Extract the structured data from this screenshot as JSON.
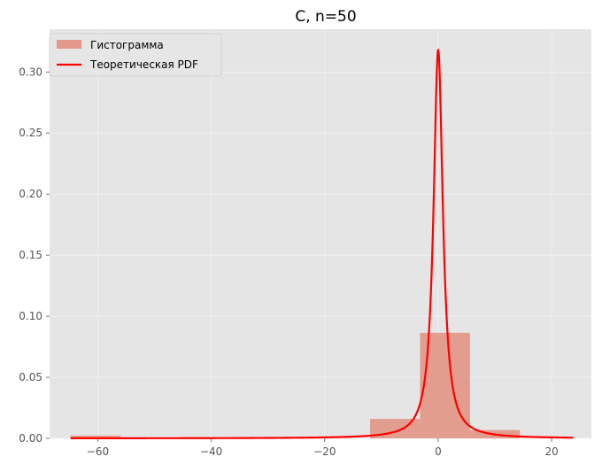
{
  "chart_data": {
    "type": "bar",
    "title": "C, n=50",
    "xlabel": "",
    "ylabel": "",
    "xlim": [
      -68.5,
      27.0
    ],
    "ylim": [
      0,
      0.335
    ],
    "grid": true,
    "legend_position": "top-left",
    "x_ticks": [
      -60,
      -40,
      -20,
      0,
      20
    ],
    "y_ticks": [
      0.0,
      0.05,
      0.1,
      0.15,
      0.2,
      0.25,
      0.3
    ],
    "histogram": {
      "name": "Гистограмма",
      "color": "#E2998A",
      "bins": [
        {
          "x0": -64.8,
          "x1": -56.0,
          "density": 0.0023
        },
        {
          "x0": -56.0,
          "x1": -47.2,
          "density": 0.0
        },
        {
          "x0": -47.2,
          "x1": -38.4,
          "density": 0.0
        },
        {
          "x0": -38.4,
          "x1": -29.6,
          "density": 0.0
        },
        {
          "x0": -29.6,
          "x1": -20.8,
          "density": 0.0
        },
        {
          "x0": -20.8,
          "x1": -12.0,
          "density": 0.0
        },
        {
          "x0": -12.0,
          "x1": -3.2,
          "density": 0.0159
        },
        {
          "x0": -3.2,
          "x1": 5.6,
          "density": 0.0864
        },
        {
          "x0": 5.6,
          "x1": 14.4,
          "density": 0.0068
        }
      ]
    },
    "pdf": {
      "name": "Теоретическая PDF",
      "color": "#FF0000",
      "distribution": "cauchy",
      "loc": 0,
      "scale": 1,
      "x_range": [
        -64.8,
        23.8
      ]
    }
  }
}
